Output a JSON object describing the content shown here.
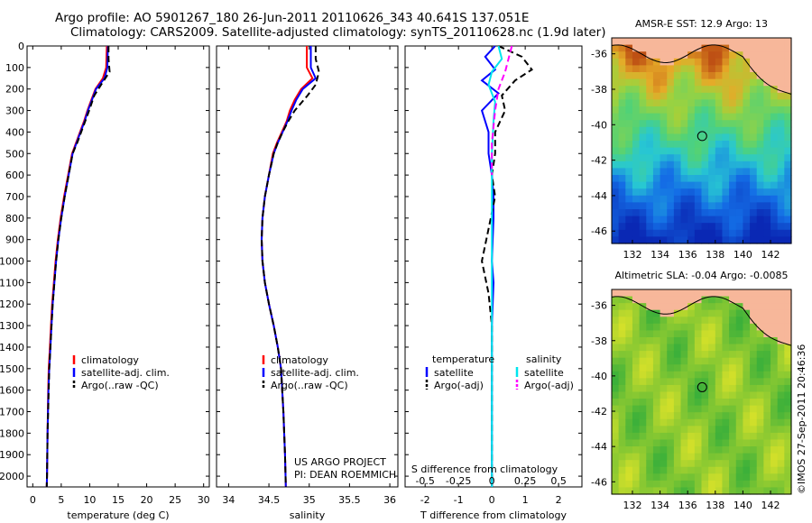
{
  "header": {
    "line1": "Argo profile: AO 5901267_180 26-Jun-2011 20110626_343 40.641S 137.051E",
    "line2": "Climatology: CARS2009. Satellite-adjusted climatology: synTS_20110628.nc (1.9d later)"
  },
  "colors": {
    "climatology": "#ff0000",
    "satellite": "#0000ff",
    "argo": "#000000",
    "satellite_salinity": "#00e5ee",
    "argo_salinity_adj": "#ff00ff",
    "land": "#f7b79a"
  },
  "chart_data": [
    {
      "type": "line",
      "xlabel": "temperature (deg C)",
      "ylim": [
        0,
        2050
      ],
      "y_reversed": true,
      "xlim": [
        -1,
        31
      ],
      "xticks": [
        0,
        5,
        10,
        15,
        20,
        25,
        30
      ],
      "yticks": [
        0,
        100,
        200,
        300,
        400,
        500,
        600,
        700,
        800,
        900,
        1000,
        1100,
        1200,
        1300,
        1400,
        1500,
        1600,
        1700,
        1800,
        1900,
        2000
      ],
      "legend": [
        "climatology",
        "satellite-adj. clim.",
        "Argo(..raw -QC)"
      ],
      "series": [
        {
          "name": "climatology",
          "color": "#ff0000",
          "dash": false,
          "x": [
            13.0,
            12.9,
            12.3,
            11.0,
            10.3,
            9.6,
            9.0,
            8.3,
            7.6,
            6.9,
            6.2,
            5.5,
            4.9,
            4.4,
            4.0,
            3.7,
            3.4,
            3.2,
            3.0,
            2.8,
            2.7,
            2.6,
            2.5,
            2.45
          ],
          "y": [
            0,
            100,
            150,
            200,
            250,
            300,
            350,
            400,
            450,
            500,
            600,
            700,
            800,
            900,
            1000,
            1100,
            1200,
            1300,
            1400,
            1500,
            1600,
            1800,
            2000,
            2050
          ]
        },
        {
          "name": "satellite-adj. clim.",
          "color": "#0000ff",
          "dash": false,
          "x": [
            13.2,
            13.1,
            12.6,
            11.1,
            10.4,
            9.7,
            9.1,
            8.4,
            7.7,
            7.0,
            6.3,
            5.6,
            5.0,
            4.5,
            4.1,
            3.8,
            3.5,
            3.3,
            3.1,
            2.9,
            2.75,
            2.6,
            2.5,
            2.45
          ],
          "y": [
            0,
            100,
            150,
            200,
            250,
            300,
            350,
            400,
            450,
            500,
            600,
            700,
            800,
            900,
            1000,
            1100,
            1200,
            1300,
            1400,
            1500,
            1600,
            1800,
            2000,
            2050
          ]
        },
        {
          "name": "Argo(..raw -QC)",
          "color": "#000000",
          "dash": true,
          "x": [
            13.3,
            13.3,
            13.5,
            12.0,
            10.8,
            9.9,
            9.2,
            8.5,
            7.8,
            7.0,
            6.3,
            5.6,
            5.0,
            4.5,
            4.1,
            3.8,
            3.5,
            3.3,
            3.1,
            2.9,
            2.8,
            2.6,
            2.5,
            2.45
          ],
          "y": [
            0,
            60,
            120,
            180,
            230,
            300,
            350,
            400,
            450,
            500,
            600,
            700,
            800,
            900,
            1000,
            1100,
            1200,
            1300,
            1400,
            1500,
            1600,
            1800,
            2000,
            2050
          ]
        }
      ]
    },
    {
      "type": "line",
      "xlabel": "salinity",
      "ylim": [
        0,
        2050
      ],
      "y_reversed": true,
      "xlim": [
        33.85,
        36.1
      ],
      "xticks": [
        34,
        34.5,
        35,
        35.5,
        36
      ],
      "legend": [
        "climatology",
        "satellite-adj. clim.",
        "Argo(..raw -QC)"
      ],
      "annotation": [
        "US ARGO PROJECT",
        "PI: DEAN ROEMMICH"
      ],
      "series": [
        {
          "name": "climatology",
          "color": "#ff0000",
          "dash": false,
          "x": [
            34.97,
            34.97,
            35.04,
            34.9,
            34.82,
            34.76,
            34.72,
            34.66,
            34.6,
            34.55,
            34.5,
            34.45,
            34.42,
            34.41,
            34.42,
            34.45,
            34.5,
            34.56,
            34.61,
            34.65,
            34.68,
            34.7,
            34.71
          ],
          "y": [
            0,
            100,
            150,
            200,
            250,
            300,
            350,
            400,
            450,
            500,
            600,
            700,
            800,
            900,
            1000,
            1100,
            1200,
            1300,
            1400,
            1500,
            1700,
            1900,
            2050
          ]
        },
        {
          "name": "satellite-adj. clim.",
          "color": "#0000ff",
          "dash": false,
          "x": [
            35.02,
            35.02,
            35.08,
            34.92,
            34.84,
            34.78,
            34.73,
            34.67,
            34.61,
            34.56,
            34.5,
            34.45,
            34.42,
            34.41,
            34.42,
            34.45,
            34.5,
            34.56,
            34.61,
            34.65,
            34.68,
            34.7,
            34.71
          ],
          "y": [
            0,
            100,
            150,
            200,
            250,
            300,
            350,
            400,
            450,
            500,
            600,
            700,
            800,
            900,
            1000,
            1100,
            1200,
            1300,
            1400,
            1500,
            1700,
            1900,
            2050
          ]
        },
        {
          "name": "Argo(..raw -QC)",
          "color": "#000000",
          "dash": true,
          "x": [
            35.08,
            35.08,
            35.12,
            35.08,
            34.98,
            34.82,
            34.74,
            34.67,
            34.61,
            34.56,
            34.5,
            34.45,
            34.42,
            34.41,
            34.42,
            34.45,
            34.5,
            34.56,
            34.61,
            34.65,
            34.68,
            34.7,
            34.71
          ],
          "y": [
            0,
            60,
            120,
            180,
            230,
            300,
            350,
            400,
            450,
            500,
            600,
            700,
            800,
            900,
            1000,
            1100,
            1200,
            1300,
            1400,
            1500,
            1700,
            1900,
            2050
          ]
        }
      ]
    },
    {
      "type": "line",
      "xlabel": "T difference from climatology",
      "xlabel_top": "S difference from climatology",
      "ylim": [
        0,
        2050
      ],
      "y_reversed": true,
      "xlim": [
        -2.6,
        2.7
      ],
      "xticks": [
        -2,
        -1,
        0,
        1,
        2
      ],
      "top_ticks": [
        "-0.5",
        "-0.25",
        "0",
        "0.25",
        "0.5"
      ],
      "top_ticks_pos": [
        -2,
        -1,
        0,
        1,
        2
      ],
      "legend_temperature": {
        "heading": "temperature",
        "items": [
          "satellite",
          "Argo(-adj)"
        ]
      },
      "legend_salinity": {
        "heading": "salinity",
        "items": [
          "satellite",
          "Argo(-adj)"
        ]
      },
      "series": [
        {
          "name": "temperature satellite",
          "color": "#0000ff",
          "dash": false,
          "x": [
            0.1,
            -0.2,
            0.1,
            -0.3,
            0.2,
            -0.3,
            -0.1,
            -0.1,
            0.0,
            0.05,
            0.05,
            0.0,
            0.05,
            0.0,
            0.0,
            0.0,
            0.0
          ],
          "y": [
            0,
            50,
            110,
            160,
            220,
            300,
            400,
            500,
            600,
            700,
            800,
            1000,
            1100,
            1300,
            1500,
            1800,
            2050
          ]
        },
        {
          "name": "temperature Argo(-adj)",
          "color": "#000000",
          "dash": true,
          "x": [
            0.2,
            0.9,
            1.2,
            0.7,
            0.3,
            0.4,
            0.1,
            0.1,
            0.0,
            0.1,
            -0.1,
            -0.3,
            -0.1,
            0.0,
            0.0,
            0.0,
            0.0
          ],
          "y": [
            0,
            50,
            110,
            160,
            230,
            300,
            400,
            500,
            600,
            700,
            850,
            1000,
            1150,
            1300,
            1500,
            1800,
            2050
          ]
        },
        {
          "name": "salinity satellite",
          "color": "#00e5ee",
          "dash": false,
          "x": [
            0.2,
            0.3,
            0.0,
            -0.1,
            0.1,
            0.05,
            0.0,
            0.0,
            0.0,
            0.0,
            0.0,
            0.0
          ],
          "y": [
            0,
            60,
            120,
            180,
            260,
            350,
            500,
            700,
            1000,
            1300,
            1700,
            2050
          ]
        },
        {
          "name": "salinity Argo(-adj)",
          "color": "#ff00ff",
          "dash": true,
          "x": [
            0.6,
            0.5,
            0.4,
            0.2,
            0.1,
            0.0,
            0.0
          ],
          "y": [
            0,
            60,
            120,
            200,
            300,
            450,
            600
          ]
        }
      ]
    },
    {
      "type": "heatmap",
      "title": "AMSR-E SST: 12.9 Argo: 13",
      "xticks": [
        132,
        134,
        136,
        138,
        140,
        142
      ],
      "yticks": [
        -36,
        -38,
        -40,
        -42,
        -44,
        -46
      ],
      "xlim": [
        130.5,
        143.5
      ],
      "ylim": [
        -46.7,
        -35.1
      ],
      "marker": {
        "lon": 137.051,
        "lat": -40.641
      }
    },
    {
      "type": "heatmap",
      "title": "Altimetric SLA: -0.04 Argo: -0.0085",
      "xticks": [
        132,
        134,
        136,
        138,
        140,
        142
      ],
      "yticks": [
        -36,
        -38,
        -40,
        -42,
        -44,
        -46
      ],
      "xlim": [
        130.5,
        143.5
      ],
      "ylim": [
        -46.7,
        -35.1
      ],
      "marker": {
        "lon": 137.051,
        "lat": -40.641
      }
    }
  ],
  "credit": "©IMOS 27-Sep-2011 20:46:36"
}
